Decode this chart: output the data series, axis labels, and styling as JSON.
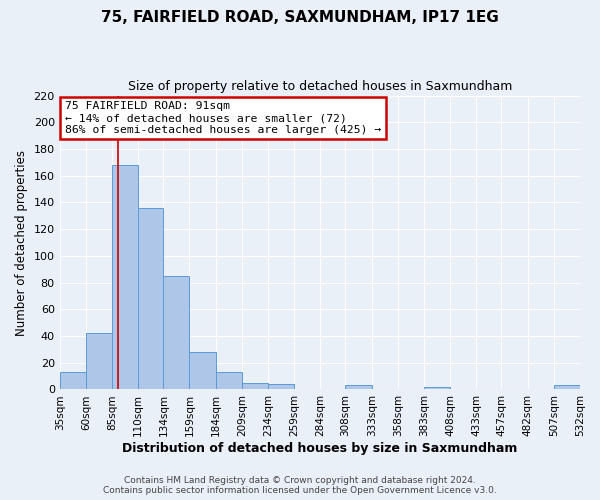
{
  "title": "75, FAIRFIELD ROAD, SAXMUNDHAM, IP17 1EG",
  "subtitle": "Size of property relative to detached houses in Saxmundham",
  "xlabel": "Distribution of detached houses by size in Saxmundham",
  "ylabel": "Number of detached properties",
  "all_heights": [
    13,
    42,
    168,
    136,
    85,
    28,
    13,
    5,
    4,
    0,
    0,
    3,
    0,
    0,
    2,
    0,
    0,
    0,
    0,
    3
  ],
  "bin_edges": [
    35,
    60,
    85,
    110,
    134,
    159,
    184,
    209,
    234,
    259,
    284,
    308,
    333,
    358,
    383,
    408,
    433,
    457,
    482,
    507,
    532
  ],
  "tick_labels": [
    "35sqm",
    "60sqm",
    "85sqm",
    "110sqm",
    "134sqm",
    "159sqm",
    "184sqm",
    "209sqm",
    "234sqm",
    "259sqm",
    "284sqm",
    "308sqm",
    "333sqm",
    "358sqm",
    "383sqm",
    "408sqm",
    "433sqm",
    "457sqm",
    "482sqm",
    "507sqm",
    "532sqm"
  ],
  "bar_color": "#aec6e8",
  "bar_edge_color": "#5b9bd5",
  "ylim": [
    0,
    220
  ],
  "yticks": [
    0,
    20,
    40,
    60,
    80,
    100,
    120,
    140,
    160,
    180,
    200,
    220
  ],
  "property_line_x": 91,
  "property_line_color": "#cc0000",
  "annotation_title": "75 FAIRFIELD ROAD: 91sqm",
  "annotation_line1": "← 14% of detached houses are smaller (72)",
  "annotation_line2": "86% of semi-detached houses are larger (425) →",
  "annotation_box_color": "#ffffff",
  "annotation_box_edge": "#cc0000",
  "background_color": "#eaf0f8",
  "grid_color": "#ffffff",
  "footer1": "Contains HM Land Registry data © Crown copyright and database right 2024.",
  "footer2": "Contains public sector information licensed under the Open Government Licence v3.0."
}
